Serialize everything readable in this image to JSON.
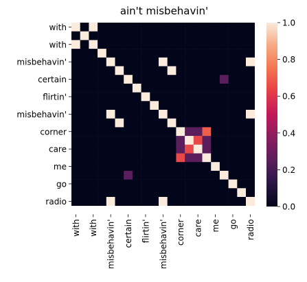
{
  "chart_data": {
    "type": "heatmap",
    "title": "ain't misbehavin'",
    "xlabel": "",
    "ylabel": "",
    "tokens": [
      "with",
      "",
      "with",
      "",
      "misbehavin'",
      "",
      "certain",
      "",
      "flirtin'",
      "",
      "misbehavin'",
      "",
      "corner",
      "",
      "care",
      "",
      "me",
      "",
      "go",
      "",
      "radio",
      ""
    ],
    "x_tick_labels": [
      "with",
      "with",
      "misbehavin'",
      "certain",
      "flirtin'",
      "misbehavin'",
      "corner",
      "care",
      "me",
      "go",
      "radio"
    ],
    "y_tick_labels": [
      "with",
      "with",
      "misbehavin'",
      "certain",
      "flirtin'",
      "misbehavin'",
      "corner",
      "care",
      "me",
      "go",
      "radio"
    ],
    "matrix": [
      [
        1,
        0,
        1,
        0,
        0,
        0,
        0,
        0,
        0,
        0,
        0,
        0,
        0,
        0,
        0,
        0,
        0,
        0,
        0,
        0,
        0
      ],
      [
        0,
        1,
        0,
        0,
        0,
        0,
        0,
        0,
        0,
        0,
        0,
        0,
        0,
        0,
        0,
        0,
        0,
        0,
        0,
        0,
        0
      ],
      [
        1,
        0,
        1,
        0,
        0,
        0,
        0,
        0,
        0,
        0,
        0,
        0,
        0,
        0,
        0,
        0,
        0,
        0,
        0,
        0,
        0
      ],
      [
        0,
        0,
        0,
        1,
        0,
        0,
        0,
        0,
        0,
        0,
        0,
        0,
        0,
        0,
        0,
        0,
        0,
        0,
        0,
        0,
        0
      ],
      [
        0,
        0,
        0,
        0,
        1,
        0,
        0,
        0,
        0,
        0,
        1,
        0,
        0,
        0,
        0,
        0,
        0,
        0,
        0,
        0,
        1
      ],
      [
        0,
        0,
        0,
        0,
        0,
        1,
        0,
        0,
        0,
        0,
        0,
        1,
        0,
        0,
        0,
        0,
        0,
        0,
        0,
        0,
        0
      ],
      [
        0,
        0,
        0,
        0,
        0,
        0,
        1,
        0,
        0,
        0,
        0,
        0,
        0,
        0,
        0,
        0,
        0,
        0.25,
        0,
        0,
        0
      ],
      [
        0,
        0,
        0,
        0,
        0,
        0,
        0,
        1,
        0,
        0,
        0,
        0,
        0,
        0,
        0,
        0,
        0,
        0,
        0,
        0,
        0
      ],
      [
        0,
        0,
        0,
        0,
        0,
        0,
        0,
        0,
        1,
        0,
        0,
        0,
        0,
        0,
        0,
        0,
        0,
        0,
        0,
        0,
        0
      ],
      [
        0,
        0,
        0,
        0,
        0,
        0,
        0,
        0,
        0,
        1,
        0,
        0,
        0,
        0,
        0,
        0,
        0,
        0,
        0,
        0,
        0
      ],
      [
        0,
        0,
        0,
        0,
        1,
        0,
        0,
        0,
        0,
        0,
        1,
        0,
        0,
        0,
        0,
        0,
        0,
        0,
        0,
        0,
        1
      ],
      [
        0,
        0,
        0,
        0,
        0,
        1,
        0,
        0,
        0,
        0,
        0,
        1,
        0,
        0,
        0,
        0,
        0,
        0,
        0,
        0,
        0
      ],
      [
        0,
        0,
        0,
        0,
        0,
        0,
        0,
        0,
        0,
        0,
        0,
        0,
        1,
        0.25,
        0.25,
        0.7,
        0,
        0,
        0,
        0,
        0
      ],
      [
        0,
        0,
        0,
        0,
        0,
        0,
        0,
        0,
        0,
        0,
        0,
        0,
        0.25,
        1,
        0.65,
        0.25,
        0,
        0,
        0,
        0,
        0
      ],
      [
        0,
        0,
        0,
        0,
        0,
        0,
        0,
        0,
        0,
        0,
        0,
        0,
        0.25,
        0.65,
        1,
        0.25,
        0,
        0,
        0,
        0,
        0
      ],
      [
        0,
        0,
        0,
        0,
        0,
        0,
        0,
        0,
        0,
        0,
        0,
        0,
        0.65,
        0.25,
        0.25,
        1,
        0,
        0,
        0,
        0,
        0
      ],
      [
        0,
        0,
        0,
        0,
        0,
        0,
        0,
        0,
        0,
        0,
        0,
        0,
        0,
        0,
        0,
        0,
        1,
        0,
        0,
        0,
        0
      ],
      [
        0,
        0,
        0,
        0,
        0,
        0,
        0.25,
        0,
        0,
        0,
        0,
        0,
        0,
        0,
        0,
        0,
        0,
        1,
        0,
        0,
        0
      ],
      [
        0,
        0,
        0,
        0,
        0,
        0,
        0,
        0,
        0,
        0,
        0,
        0,
        0,
        0,
        0,
        0,
        0,
        0,
        1,
        0,
        0
      ],
      [
        0,
        0,
        0,
        0,
        0,
        0,
        0,
        0,
        0,
        0,
        0,
        0,
        0,
        0,
        0,
        0,
        0,
        0,
        0,
        1,
        0
      ],
      [
        0,
        0,
        0,
        0,
        1,
        0,
        0,
        0,
        0,
        0,
        1,
        0,
        0,
        0,
        0,
        0,
        0,
        0,
        0,
        0,
        1
      ]
    ],
    "colorbar": {
      "min": 0.0,
      "max": 1.0,
      "ticks": [
        "0.0",
        "0.2",
        "0.4",
        "0.6",
        "0.8",
        "1.0"
      ],
      "colormap": "rocket"
    },
    "grid": false
  }
}
